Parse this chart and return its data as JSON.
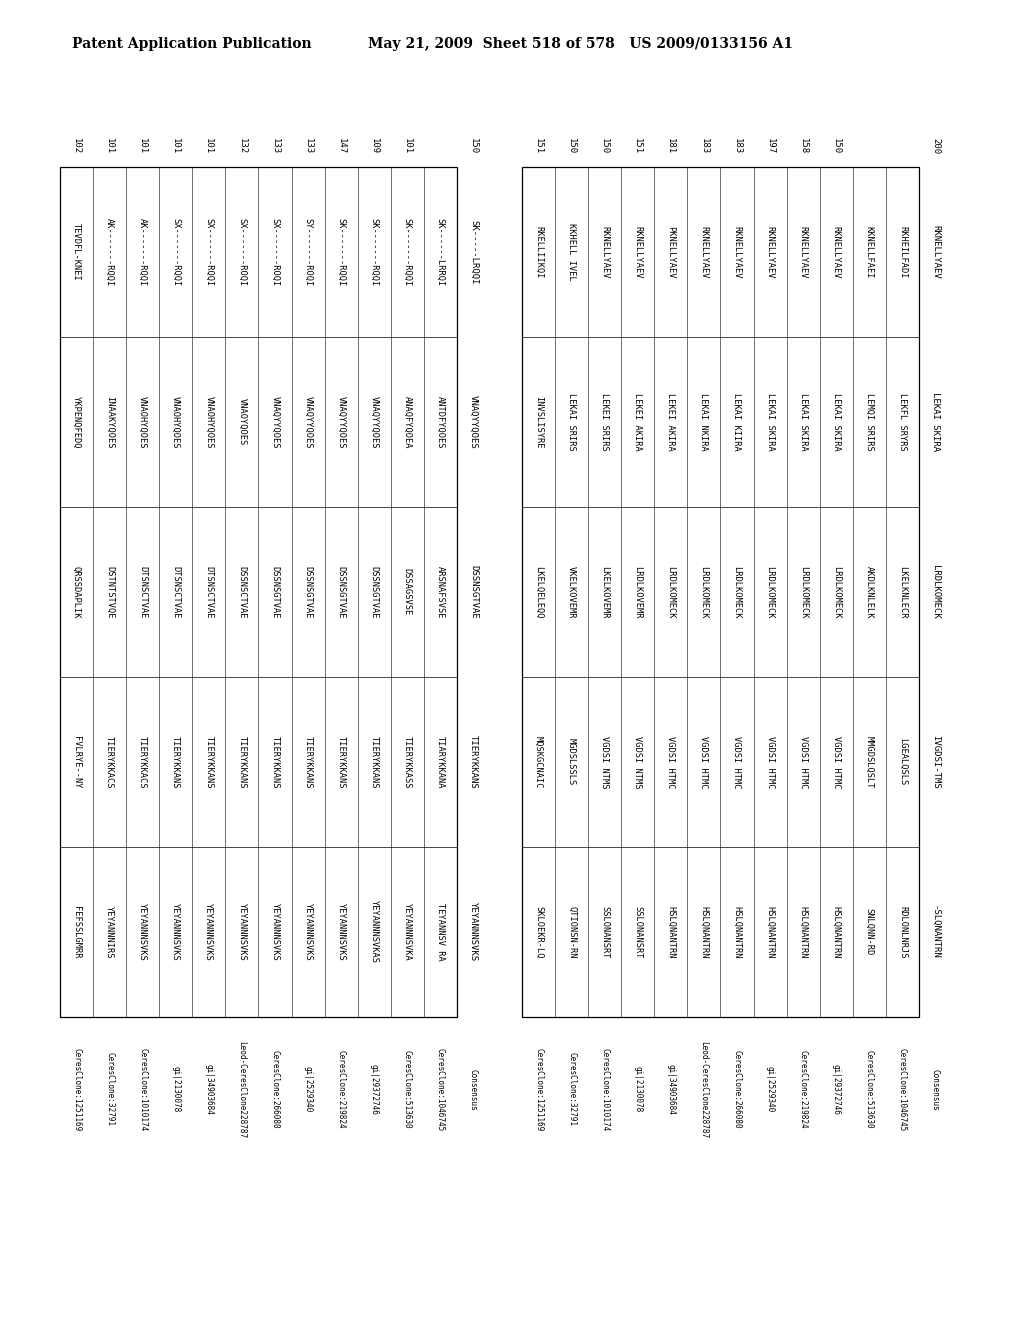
{
  "header_left": "Patent Application Publication",
  "header_right": "May 21, 2009  Sheet 518 of 578   US 2009/0133156 A1",
  "bg_color": "#ffffff",
  "block1": {
    "entries": [
      {
        "label": "CeresClone:1251169",
        "segs": [
          "FEFSSLGMRR",
          "FVLRYE--NY",
          "QRSSDAPLIK",
          "YKPENQFEDQ",
          "TEVDFL-KNEI"
        ],
        "num": "102"
      },
      {
        "label": "CeresClone:32791",
        "segs": [
          "YEYANNNIRS",
          "TIERYKKACS",
          "DSTNTSTVQE",
          "INAAKYQOES",
          "AK-------RQQI"
        ],
        "num": "101"
      },
      {
        "label": "CeresClone:1010174",
        "segs": [
          "YEYANNNSVKS",
          "TIERYKKACS",
          "DTSNSCTVAE",
          "VNAOHYQOES",
          "AK-------RQQI"
        ],
        "num": "101"
      },
      {
        "label": "gi|2130078",
        "segs": [
          "YEYANNNSVKS",
          "TIERYKKANS",
          "DTSNSCTVAE",
          "VNAOHYQOES",
          "SX-------RQQI"
        ],
        "num": "101"
      },
      {
        "label": "gi|34903684",
        "segs": [
          "YEYANNNSVKS",
          "TIERYKKANS",
          "DTSNSCTVAE",
          "VNAOHYQOES",
          "SX-------RQQI"
        ],
        "num": "101"
      },
      {
        "label": "Leod-CeresClone228787",
        "segs": [
          "YEYANNNSVKS",
          "TIERYKKANS",
          "DSSNSCTVAE",
          "VNAOYQOES",
          "SX-------ROQI"
        ],
        "num": "132"
      },
      {
        "label": "CeresClone:266080",
        "segs": [
          "YEYANNNSVKS",
          "TIERYKKANS",
          "DSSNSGTVAE",
          "VNAQYYQOES",
          "SX-------ROQI"
        ],
        "num": "133"
      },
      {
        "label": "gi|2529340",
        "segs": [
          "YEYANNNSVKS",
          "TIERYKKANS",
          "DSSNSGTVAE",
          "VNAQYYQOES",
          "SY-------ROQI"
        ],
        "num": "133"
      },
      {
        "label": "CeresClone:219824",
        "segs": [
          "YEYANNNSVKS",
          "TIERYKKANS",
          "DSSNSGTVAE",
          "VNAQYYQOES",
          "SK-------RQQI"
        ],
        "num": "147"
      },
      {
        "label": "gi|29372746",
        "segs": [
          "YEYANNNSVKAS",
          "TIERYKKANS",
          "DSSNSGTVAE",
          "VNAQYYQOES",
          "SK-------RQQI"
        ],
        "num": "109"
      },
      {
        "label": "CeresClone:513630",
        "segs": [
          "YEYANNNSVKA",
          "TIERYKKASS",
          "DSSAGSVSE",
          "ANAQFYQOEA",
          "SK-------RQQI"
        ],
        "num": "101"
      },
      {
        "label": "CeresClone:1046745",
        "segs": [
          "TEYANNSV RA",
          "TIARYKKANA",
          "ARSNAFSVSE",
          "ANTDFYQOES",
          "SK------LRRQI"
        ],
        "num": ""
      },
      {
        "label": "Consensus",
        "segs": [
          "YEYANNNSVKS",
          "TIERYKKANS",
          "DSSNSGTVAE",
          "VNAQYYQOES",
          "SK-----LRQQI"
        ],
        "num": "150"
      }
    ]
  },
  "block2": {
    "entries": [
      {
        "label": "CeresClone:1251169",
        "segs": [
          "SKLOEKR-LQ",
          "MQSKGCNAIC",
          "LKELQELEQQ",
          "INVSLISYRE",
          "RKELLIIKQI"
        ],
        "num": "151"
      },
      {
        "label": "CeresClone:32791",
        "segs": [
          "QTIONSN-RN",
          "MGDSLSSLS",
          "VKELKOVEMR",
          "LEKAI SRIRS",
          "KKHELL IVEL"
        ],
        "num": "150"
      },
      {
        "label": "CeresClone:1010174",
        "segs": [
          "SSLONANSRT",
          "VGDSI NTMS",
          "LKELKOVEMR",
          "LEKEI SRIRS",
          "RKNELLYAEV"
        ],
        "num": "150"
      },
      {
        "label": "gi|2130078",
        "segs": [
          "SSLONANSRT",
          "VGDSI NTMS",
          "LRDLKOVEMR",
          "LEKEI AKIRA",
          "RKNELLYAEV"
        ],
        "num": "151"
      },
      {
        "label": "gi|34903684",
        "segs": [
          "HSLQNANTRN",
          "VGDSI HTMC",
          "LRDLKOMECK",
          "LEKEI AKIRA",
          "PKNELLYAEV"
        ],
        "num": "181"
      },
      {
        "label": "Leod-CeresClone228787",
        "segs": [
          "HSLQNANTRN",
          "VGDSI HTMC",
          "LRDLKOMECK",
          "LEKAI NKIRA",
          "RKNELLYAEV"
        ],
        "num": "183"
      },
      {
        "label": "CeresClone:266080",
        "segs": [
          "HSLQNANTRN",
          "VGDSI HTMC",
          "LRDLKOMECK",
          "LEKAI KIIRA",
          "RKNELLYAEV"
        ],
        "num": "183"
      },
      {
        "label": "gi|2529340",
        "segs": [
          "HSLQNANTRN",
          "VGDSI HTMC",
          "LRDLKOMECK",
          "LEKAI SKIRA",
          "RKNELLYAEV"
        ],
        "num": "197"
      },
      {
        "label": "CeresClone:219824",
        "segs": [
          "HSLQNANTRN",
          "VGDSI HTMC",
          "LRDLKOMECK",
          "LEKAI SKIRA",
          "RKNELLYAEV"
        ],
        "num": "158"
      },
      {
        "label": "gi|29372746",
        "segs": [
          "HSLQNANTRN",
          "VGDSI HTMC",
          "LRDLKOMECK",
          "LEKAI SKIRA",
          "RKNELLYAEV"
        ],
        "num": "150"
      },
      {
        "label": "CeresClone:513630",
        "segs": [
          "SNLQNN-RD",
          "MMGDSLQSLT",
          "AKDLKNLELK",
          "LEMQI SRIRS",
          "KKNELLFAEI"
        ],
        "num": ""
      },
      {
        "label": "CeresClone:1046745",
        "segs": [
          "RDLONLNRJS",
          "LGEALQSLS",
          "LKELKNLECR",
          "LEKFL SRYRS",
          "RKHEILFADI"
        ],
        "num": ""
      },
      {
        "label": "Consensus",
        "segs": [
          "-SLQNANTRN",
          "IVGDSI-TMS",
          "LRDLKOMECK",
          "LEKAI SKIRA",
          "RKNELLYAEV"
        ],
        "num": "200"
      }
    ]
  },
  "consensus_segs1": "YEYANNSVKS  TIERYKKANS  DSSNSGTVAE  VNAQYYQOES  SK-----LRQQI",
  "consensus_extra1": "SK-----LRQQI",
  "cons1_label": "YEYANNNSVKS TIERYKKANS DSSNSGTV AE VNAQYYQOES SK-----LRQQI",
  "cons2_label": "-SLQNANTRN IVGDSI-TMS LRDLKOMECK LEKAI SKIRA RKNELLYAEV"
}
